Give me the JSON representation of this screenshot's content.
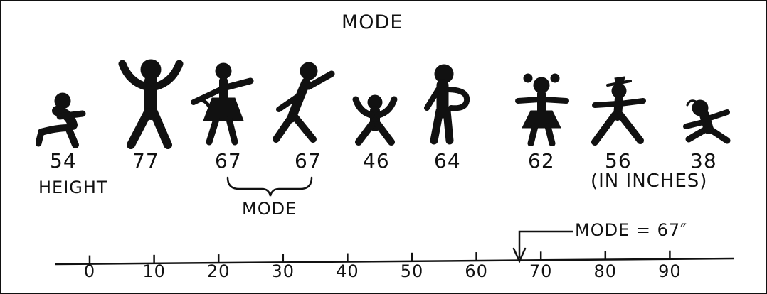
{
  "title": "MODE",
  "figures": [
    {
      "name": "child-1",
      "height": "54"
    },
    {
      "name": "adult-arms-up",
      "height": "77"
    },
    {
      "name": "dancer-1",
      "height": "67"
    },
    {
      "name": "dancer-2",
      "height": "67"
    },
    {
      "name": "small-child-arms-up",
      "height": "46"
    },
    {
      "name": "person-hand-on-hip",
      "height": "64"
    },
    {
      "name": "girl-pigtails",
      "height": "62"
    },
    {
      "name": "person-hat",
      "height": "56"
    },
    {
      "name": "toddler",
      "height": "38"
    }
  ],
  "height_label": "HEIGHT",
  "unit_label": "(IN INCHES)",
  "mode_brace_label": "MODE",
  "callout_label": "MODE = 67″",
  "number_line": {
    "ticks": [
      "0",
      "10",
      "20",
      "30",
      "40",
      "50",
      "60",
      "70",
      "80",
      "90"
    ],
    "mode_value": 67
  }
}
